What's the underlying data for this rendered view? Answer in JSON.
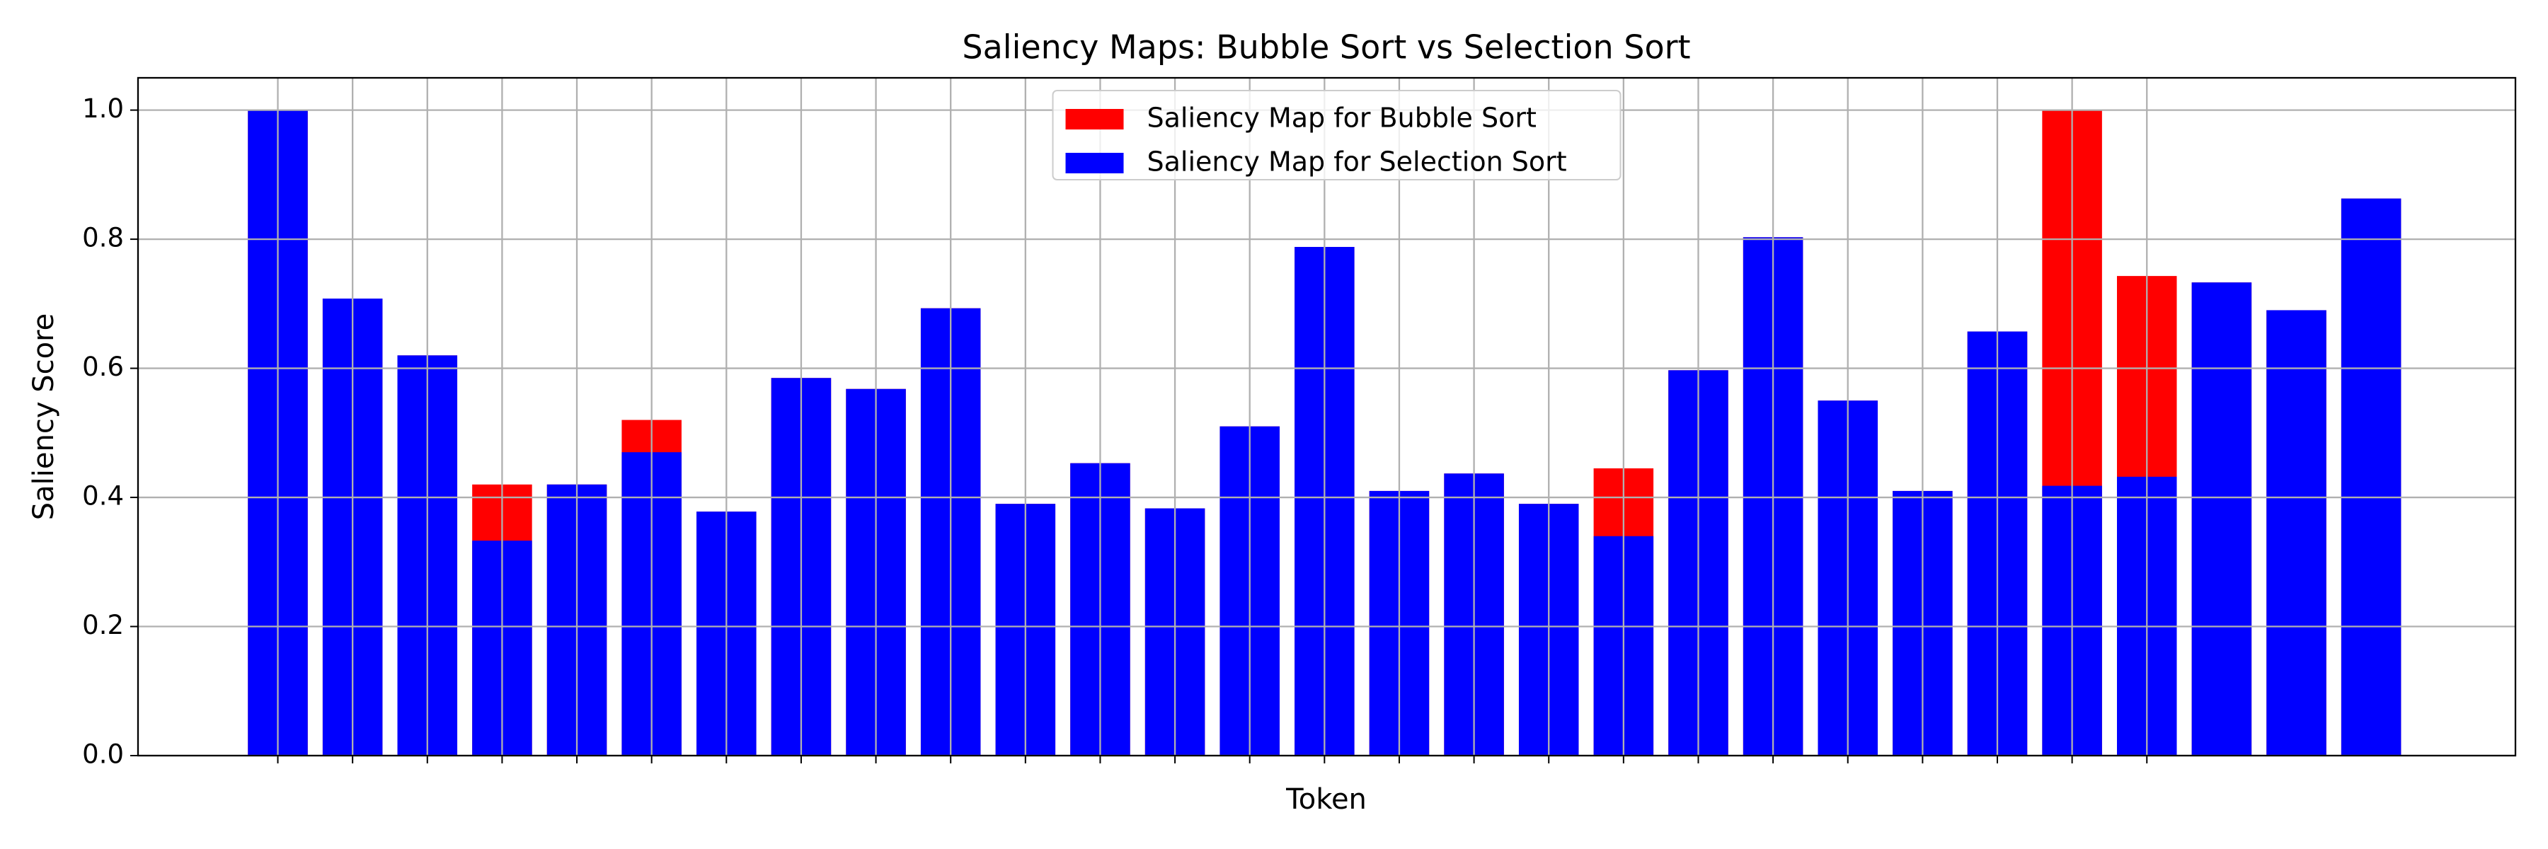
{
  "chart_data": {
    "type": "bar",
    "title": "Saliency Maps: Bubble Sort vs Selection Sort",
    "x_label": "Token",
    "y_label": "Saliency Score",
    "x": [
      0,
      1,
      2,
      3,
      4,
      5,
      6,
      7,
      8,
      9,
      10,
      11,
      12,
      13,
      14,
      15,
      16,
      17,
      18,
      19,
      20,
      21,
      22,
      23,
      24,
      25,
      26,
      27,
      28
    ],
    "series": [
      {
        "name": "Saliency Map for Bubble Sort",
        "color": "#ff0000",
        "values": [
          1.0,
          0.708,
          0.62,
          0.42,
          0.42,
          0.52,
          0.378,
          0.585,
          0.568,
          0.693,
          0.39,
          0.453,
          0.383,
          0.51,
          0.788,
          0.41,
          0.437,
          0.39,
          0.445,
          0.597,
          0.803,
          0.55,
          0.41,
          0.657,
          1.0,
          0.743,
          0.733,
          0.69,
          0.863
        ]
      },
      {
        "name": "Saliency Map for Selection Sort",
        "color": "#0000ff",
        "values": [
          1.0,
          0.708,
          0.62,
          0.333,
          0.42,
          0.47,
          0.378,
          0.585,
          0.568,
          0.693,
          0.39,
          0.453,
          0.383,
          0.51,
          0.788,
          0.41,
          0.437,
          0.39,
          0.34,
          0.597,
          0.803,
          0.55,
          0.41,
          0.657,
          0.418,
          0.432,
          0.733,
          0.69,
          0.863
        ]
      }
    ],
    "xlim": [
      -1.87,
      29.93
    ],
    "xticks": [
      0,
      1,
      2,
      3,
      4,
      5,
      6,
      7,
      8,
      9,
      10,
      11,
      12,
      13,
      14,
      15,
      16,
      17,
      18,
      19,
      20,
      21,
      22,
      23,
      24,
      25
    ],
    "ylim": [
      0,
      1.05
    ],
    "yticks": [
      {
        "value": 0,
        "label": "0.0"
      },
      {
        "value": 0.2,
        "label": "0.2"
      },
      {
        "value": 0.4,
        "label": "0.4"
      },
      {
        "value": 0.6,
        "label": "0.6"
      },
      {
        "value": 0.8,
        "label": "0.8"
      },
      {
        "value": 1.0,
        "label": "1.0"
      }
    ],
    "grid": true,
    "legend": "upper center"
  }
}
